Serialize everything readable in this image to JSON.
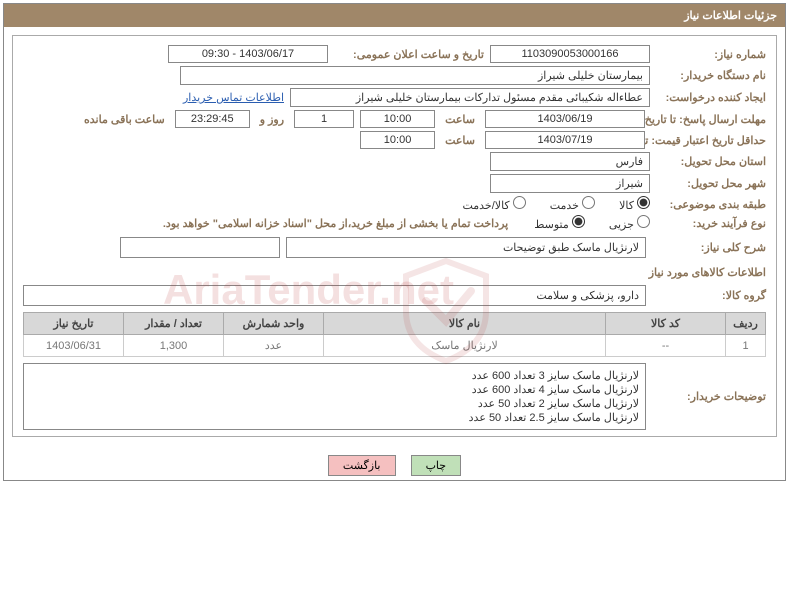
{
  "header": {
    "title": "جزئیات اطلاعات نیاز"
  },
  "fields": {
    "needNumber": {
      "label": "شماره نیاز:",
      "value": "1103090053000166"
    },
    "announceDate": {
      "label": "تاریخ و ساعت اعلان عمومی:",
      "value": "1403/06/17 - 09:30"
    },
    "buyerOrg": {
      "label": "نام دستگاه خریدار:",
      "value": "بیمارستان خلیلی شیراز"
    },
    "requester": {
      "label": "ایجاد کننده درخواست:",
      "value": "عطاءاله شکیبائی مقدم مسئول تدارکات  بیمارستان خلیلی شیراز",
      "contactLink": "اطلاعات تماس خریدار"
    },
    "replyDeadline": {
      "label": "مهلت ارسال پاسخ: تا تاریخ:",
      "date": "1403/06/19",
      "timeLabel": "ساعت",
      "time": "10:00",
      "daysLabel": "روز و",
      "days": "1",
      "countdown": "23:29:45",
      "remainLabel": "ساعت باقی مانده"
    },
    "validityMin": {
      "label": "حداقل تاریخ اعتبار قیمت: تا تاریخ:",
      "date": "1403/07/19",
      "timeLabel": "ساعت",
      "time": "10:00"
    },
    "province": {
      "label": "استان محل تحویل:",
      "value": "فارس"
    },
    "city": {
      "label": "شهر محل تحویل:",
      "value": "شیراز"
    },
    "category": {
      "label": "طبقه بندی موضوعی:",
      "opts": [
        "کالا",
        "خدمت",
        "کالا/خدمت"
      ],
      "selected": 0
    },
    "buyType": {
      "label": "نوع فرآیند خرید:",
      "opts": [
        "جزیی",
        "متوسط"
      ],
      "selected": 1,
      "note": "پرداخت تمام یا بخشی از مبلغ خرید،از محل \"اسناد خزانه اسلامی\" خواهد بود."
    },
    "generalDesc": {
      "label": "شرح کلی نیاز:",
      "value": "لارنژیال ماسک طبق توضیحات"
    },
    "itemsTitle": "اطلاعات کالاهای مورد نیاز",
    "group": {
      "label": "گروه کالا:",
      "value": "دارو، پزشکی و سلامت"
    }
  },
  "table": {
    "headers": [
      "ردیف",
      "کد کالا",
      "نام کالا",
      "واحد شمارش",
      "تعداد / مقدار",
      "تاریخ نیاز"
    ],
    "rows": [
      {
        "idx": "1",
        "code": "--",
        "name": "لارنژیال ماسک",
        "unit": "عدد",
        "qty": "1,300",
        "date": "1403/06/31"
      }
    ]
  },
  "buyerNotes": {
    "label": "توضیحات خریدار:",
    "lines": [
      "لارنژیال ماسک سایز 3 تعداد 600 عدد",
      "لارنژیال ماسک سایز 4 تعداد 600 عدد",
      "لارنژیال ماسک سایز 2 تعداد 50 عدد",
      "لارنژیال ماسک سایز 2.5 تعداد 50 عدد"
    ]
  },
  "buttons": {
    "print": "چاپ",
    "back": "بازگشت"
  },
  "watermark": "AriaTender.net"
}
